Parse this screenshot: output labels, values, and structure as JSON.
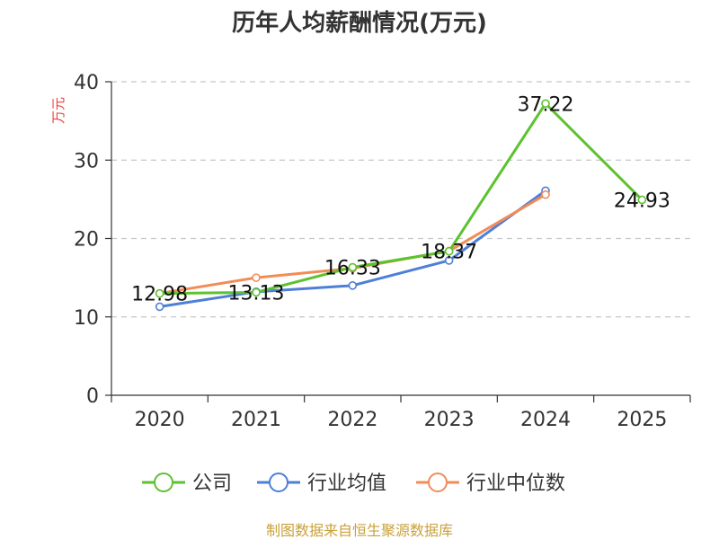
{
  "chart_data": {
    "type": "line",
    "title": "历年人均薪酬情况(万元)",
    "ylabel": "万元",
    "xlabel": "",
    "categories": [
      "2020",
      "2021",
      "2022",
      "2023",
      "2024",
      "2025"
    ],
    "ylim": [
      0,
      40
    ],
    "yticks": [
      0,
      10,
      20,
      30,
      40
    ],
    "grid": true,
    "legend_position": "bottom",
    "series": [
      {
        "name": "公司",
        "color": "#5cc22f",
        "values": [
          12.98,
          13.13,
          16.33,
          18.37,
          37.22,
          24.93
        ],
        "labels": [
          "12.98",
          "13.13",
          "16.33",
          "18.37",
          "37.22",
          "24.93"
        ]
      },
      {
        "name": "行业均值",
        "color": "#4e7fd8",
        "values": [
          11.3,
          13.2,
          14.0,
          17.2,
          26.1,
          null
        ]
      },
      {
        "name": "行业中位数",
        "color": "#f28c57",
        "values": [
          13.0,
          15.0,
          16.2,
          18.4,
          25.6,
          null
        ]
      }
    ]
  },
  "source": "制图数据来自恒生聚源数据库"
}
